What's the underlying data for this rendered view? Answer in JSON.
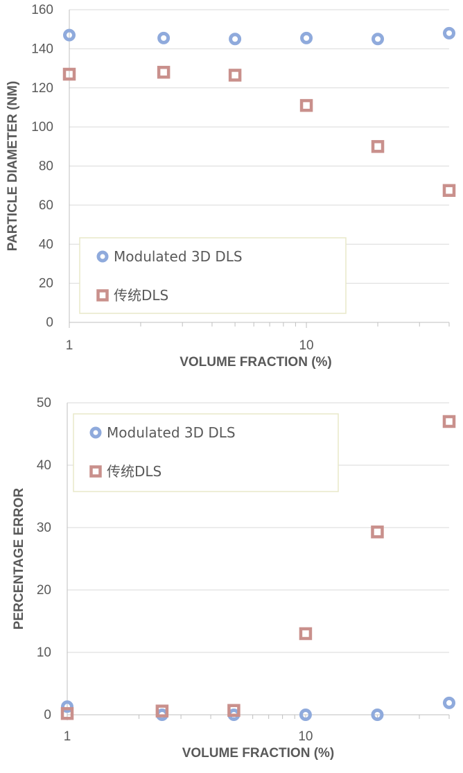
{
  "chart_data": [
    {
      "type": "scatter",
      "xlabel": "VOLUME FRACTION (%)",
      "ylabel": "PARTICLE DIAMETER (NM)",
      "x_scale": "log",
      "xlim": [
        1,
        40
      ],
      "ylim": [
        0,
        160
      ],
      "x_tick_labels": [
        "1",
        "10"
      ],
      "y_tick_labels": [
        "0",
        "20",
        "40",
        "60",
        "80",
        "100",
        "120",
        "140",
        "160"
      ],
      "grid": "horizontal",
      "legend_position": "bottom-left",
      "series": [
        {
          "name": "Modulated 3D DLS",
          "marker": "circle",
          "color": "#8faadc",
          "points": [
            {
              "x": 1,
              "y": 147
            },
            {
              "x": 2.5,
              "y": 145.5
            },
            {
              "x": 5,
              "y": 145
            },
            {
              "x": 10,
              "y": 145.5
            },
            {
              "x": 20,
              "y": 145
            },
            {
              "x": 40,
              "y": 148
            }
          ]
        },
        {
          "name": "传统DLS",
          "marker": "square",
          "color": "#c9908c",
          "points": [
            {
              "x": 1,
              "y": 127
            },
            {
              "x": 2.5,
              "y": 128
            },
            {
              "x": 5,
              "y": 126.5
            },
            {
              "x": 10,
              "y": 111
            },
            {
              "x": 20,
              "y": 90
            },
            {
              "x": 40,
              "y": 67.5
            }
          ]
        }
      ]
    },
    {
      "type": "scatter",
      "xlabel": "VOLUME FRACTION (%)",
      "ylabel": "PERCENTAGE ERROR",
      "x_scale": "log",
      "xlim": [
        1,
        40
      ],
      "ylim": [
        0,
        50
      ],
      "x_tick_labels": [
        "1",
        "10"
      ],
      "y_tick_labels": [
        "0",
        "10",
        "20",
        "30",
        "40",
        "50"
      ],
      "grid": "horizontal",
      "legend_position": "top-left",
      "series": [
        {
          "name": "Modulated 3D DLS",
          "marker": "circle",
          "color": "#8faadc",
          "points": [
            {
              "x": 1,
              "y": 1.3
            },
            {
              "x": 2.5,
              "y": 0
            },
            {
              "x": 5,
              "y": 0
            },
            {
              "x": 10,
              "y": 0
            },
            {
              "x": 20,
              "y": 0
            },
            {
              "x": 40,
              "y": 1.9
            }
          ]
        },
        {
          "name": "传统DLS",
          "marker": "square",
          "color": "#c9908c",
          "points": [
            {
              "x": 1,
              "y": 0.2
            },
            {
              "x": 2.5,
              "y": 0.6
            },
            {
              "x": 5,
              "y": 0.7
            },
            {
              "x": 10,
              "y": 13
            },
            {
              "x": 20,
              "y": 29.3
            },
            {
              "x": 40,
              "y": 47
            }
          ]
        }
      ]
    }
  ]
}
